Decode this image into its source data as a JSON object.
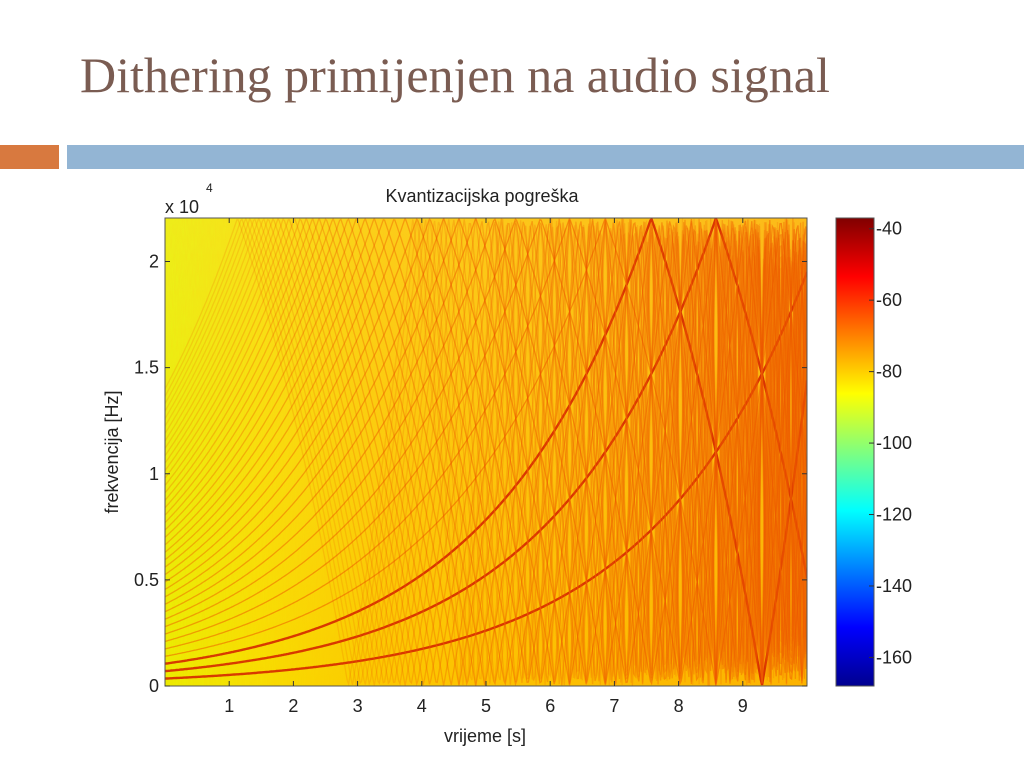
{
  "slide": {
    "title": "Dithering primijenjen na audio signal",
    "colors": {
      "title": "#7a5c52",
      "accent_orange": "#d8793f",
      "accent_blue": "#93b5d4"
    }
  },
  "chart_data": {
    "type": "heatmap",
    "title": "Kvantizacijska pogreška",
    "xlabel": "vrijeme [s]",
    "ylabel": "frekvencija [Hz]",
    "y_exponent_label": "x 10",
    "y_exponent": "4",
    "xlim": [
      0,
      10
    ],
    "ylim": [
      0,
      22050
    ],
    "xticks": [
      1,
      2,
      3,
      4,
      5,
      6,
      7,
      8,
      9
    ],
    "yticks": [
      {
        "value": 0,
        "label": "0"
      },
      {
        "value": 5000,
        "label": "0.5"
      },
      {
        "value": 10000,
        "label": "1"
      },
      {
        "value": 15000,
        "label": "1.5"
      },
      {
        "value": 20000,
        "label": "2"
      }
    ],
    "colorbar": {
      "range": [
        -168,
        -37
      ],
      "ticks": [
        -40,
        -60,
        -80,
        -100,
        -120,
        -140,
        -160
      ],
      "colormap": "jet"
    },
    "level_range_db": {
      "background_low_t": [
        -100,
        -85
      ],
      "background_high_t": [
        -80,
        -70
      ],
      "harmonic_lines": [
        -60,
        -45
      ]
    },
    "harmonics": {
      "fundamental_hz_at_t0": 350,
      "fundamental_hz_at_t10": 19500,
      "sweep": "exponential",
      "aliased_at_nyquist": true,
      "harmonic_orders": [
        1,
        2,
        3,
        4,
        5,
        6,
        7,
        8,
        9,
        10,
        11,
        12,
        13,
        14,
        15,
        16,
        17,
        18,
        19,
        20,
        21,
        22,
        23,
        24,
        25,
        26,
        27,
        28,
        29,
        30,
        31,
        32,
        33,
        34,
        35,
        36,
        37,
        38,
        39,
        40
      ]
    }
  }
}
